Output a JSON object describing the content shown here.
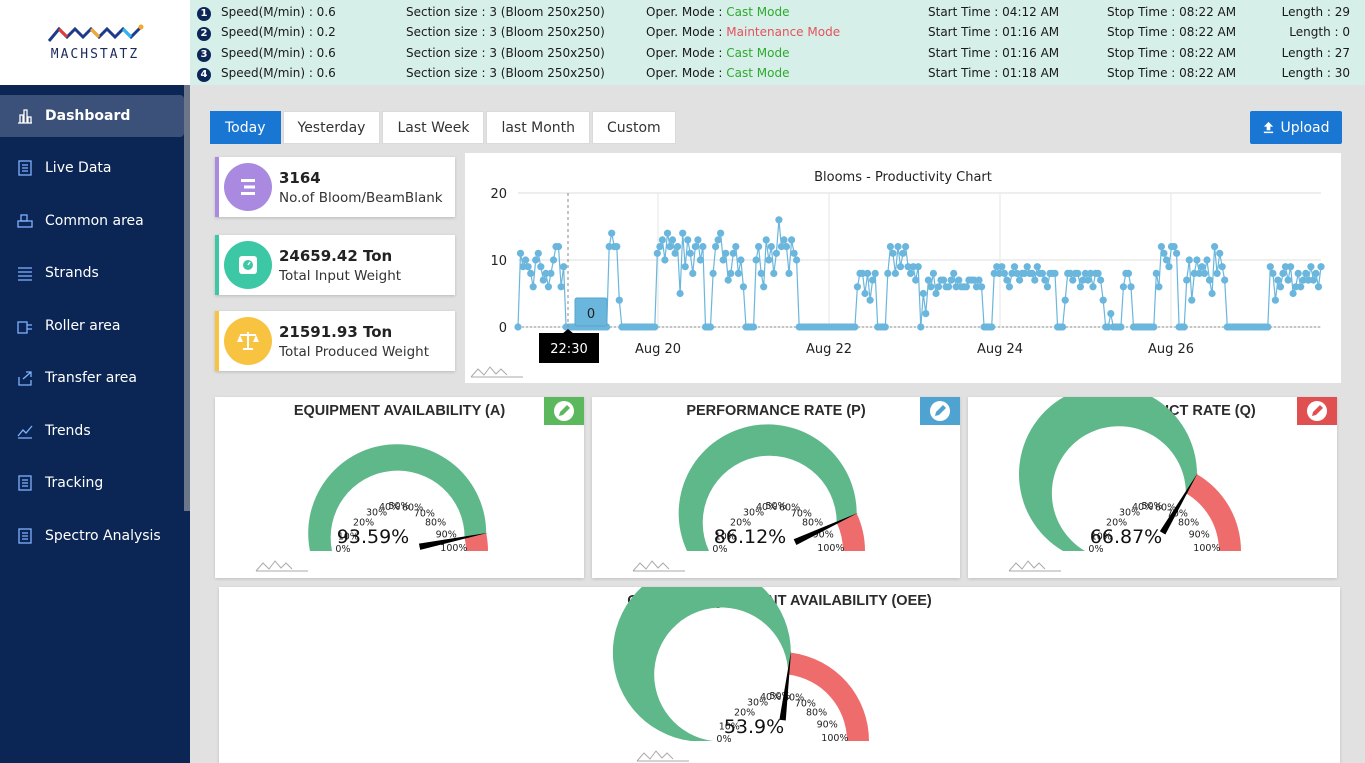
{
  "brand": {
    "name": "MACHSTATZ"
  },
  "status_rows": [
    {
      "num": "1",
      "speed": "Speed(M/min) : 0.6",
      "section": "Section size : 3 (Bloom 250x250)",
      "mode_label": "Oper. Mode : ",
      "mode_value": "Cast Mode",
      "mode_type": "cast",
      "start": "Start Time : 04:12 AM",
      "stop": "Stop Time : 08:22 AM",
      "length": "Length : 29"
    },
    {
      "num": "2",
      "speed": "Speed(M/min) : 0.2",
      "section": "Section size : 3 (Bloom 250x250)",
      "mode_label": "Oper. Mode : ",
      "mode_value": "Maintenance Mode",
      "mode_type": "maint",
      "start": "Start Time : 01:16 AM",
      "stop": "Stop Time : 08:22 AM",
      "length": "Length : 0"
    },
    {
      "num": "3",
      "speed": "Speed(M/min) : 0.6",
      "section": "Section size : 3 (Bloom 250x250)",
      "mode_label": "Oper. Mode : ",
      "mode_value": "Cast Mode",
      "mode_type": "cast",
      "start": "Start Time : 01:16 AM",
      "stop": "Stop Time : 08:22 AM",
      "length": "Length : 27"
    },
    {
      "num": "4",
      "speed": "Speed(M/min) : 0.6",
      "section": "Section size : 3 (Bloom 250x250)",
      "mode_label": "Oper. Mode : ",
      "mode_value": "Cast Mode",
      "mode_type": "cast",
      "start": "Start Time : 01:18 AM",
      "stop": "Stop Time : 08:22 AM",
      "length": "Length : 30"
    }
  ],
  "colors": {
    "cast": "#2eaa2e",
    "maintenance": "#e8505b",
    "primary": "#1976d2",
    "sidebar": "#0b2654",
    "gauge_green": "#5fb88a",
    "gauge_red": "#ef6c6c"
  },
  "sidebar": {
    "items": [
      {
        "label": "Dashboard",
        "icon": "bar-chart-icon",
        "active": true
      },
      {
        "label": "Live Data",
        "icon": "document-icon"
      },
      {
        "label": "Common area",
        "icon": "machine-icon"
      },
      {
        "label": "Strands",
        "icon": "lines-icon"
      },
      {
        "label": "Roller area",
        "icon": "roller-icon"
      },
      {
        "label": "Transfer area",
        "icon": "transfer-icon"
      },
      {
        "label": "Trends",
        "icon": "trend-icon"
      },
      {
        "label": "Tracking",
        "icon": "document-icon"
      },
      {
        "label": "Spectro Analysis",
        "icon": "document-icon"
      }
    ]
  },
  "tabs": [
    "Today",
    "Yesterday",
    "Last Week",
    "last Month",
    "Custom"
  ],
  "upload_label": "Upload",
  "kpis": [
    {
      "value": "3164",
      "label": "No.of Bloom/BeamBlank",
      "color": "#a98ae0",
      "bar": "#a98ae0",
      "icon": "bars-icon"
    },
    {
      "value": "24659.42 Ton",
      "label": "Total Input Weight",
      "color": "#3cc7a5",
      "bar": "#3cc7a5",
      "icon": "scale-icon"
    },
    {
      "value": "21591.93 Ton",
      "label": "Total Produced Weight",
      "color": "#f7c340",
      "bar": "#f7c340",
      "icon": "balance-icon"
    }
  ],
  "chart_data": {
    "type": "line",
    "title": "Blooms - Productivity Chart",
    "ylim": [
      0,
      20
    ],
    "yticks": [
      "0",
      "10",
      "20"
    ],
    "xticks": [
      "Aug 20",
      "Aug 22",
      "Aug 24",
      "Aug 26"
    ],
    "tooltip": {
      "value": "0",
      "time": "22:30"
    },
    "grid": true,
    "color": "#6bb6dd",
    "series": [
      {
        "values": [
          0,
          11,
          9,
          10,
          9,
          8,
          6,
          10,
          11,
          9,
          7,
          8,
          6,
          8,
          10,
          12,
          12,
          6,
          9,
          0,
          0,
          0,
          0,
          0,
          0,
          0,
          0,
          0,
          0,
          0,
          0,
          0,
          0,
          0,
          0,
          0,
          12,
          14,
          12,
          12,
          4,
          0,
          0,
          0,
          0,
          0,
          0,
          0,
          0,
          0,
          0,
          0,
          0,
          0,
          0,
          11,
          12,
          13,
          10,
          14,
          12,
          13,
          11,
          12,
          5,
          14,
          9,
          13,
          11,
          8,
          12,
          13,
          10,
          12,
          0,
          0,
          0,
          8,
          12,
          13,
          14,
          10,
          11,
          7,
          8,
          11,
          12,
          8,
          10,
          6,
          0,
          0,
          0,
          0,
          10,
          12,
          8,
          6,
          13,
          10,
          12,
          8,
          11,
          16,
          12,
          13,
          12,
          8,
          13,
          11,
          10,
          0,
          0,
          0,
          0,
          0,
          0,
          0,
          0,
          0,
          0,
          0,
          0,
          0,
          0,
          0,
          0,
          0,
          0,
          0,
          0,
          0,
          0,
          0,
          6,
          8,
          8,
          5,
          8,
          4,
          7,
          8,
          0,
          0,
          0,
          0,
          8,
          12,
          11,
          8,
          12,
          9,
          11,
          12,
          9,
          8,
          9,
          7,
          9,
          0,
          5,
          2,
          7,
          6,
          8,
          5,
          6,
          7,
          7,
          6,
          6,
          7,
          8,
          6,
          7,
          6,
          6,
          6,
          7,
          7,
          7,
          6,
          7,
          6,
          0,
          0,
          0,
          0,
          8,
          9,
          8,
          9,
          8,
          7,
          6,
          8,
          9,
          8,
          7,
          8,
          8,
          9,
          8,
          8,
          7,
          9,
          8,
          8,
          7,
          6,
          8,
          8,
          8,
          0,
          0,
          0,
          4,
          8,
          8,
          7,
          8,
          8,
          6,
          7,
          8,
          7,
          8,
          6,
          8,
          8,
          7,
          4,
          0,
          0,
          2,
          0,
          0,
          0,
          0,
          6,
          8,
          8,
          6,
          0,
          0,
          0,
          0,
          0,
          0,
          0,
          0,
          0,
          8,
          6,
          12,
          11,
          10,
          9,
          12,
          12,
          11,
          0,
          0,
          0,
          7,
          10,
          4,
          8,
          10,
          8,
          9,
          8,
          10,
          7,
          5,
          12,
          8,
          11,
          9,
          7,
          0,
          0,
          0,
          0,
          0,
          0,
          0,
          0,
          0,
          0,
          0,
          0,
          0,
          0,
          0,
          0,
          0,
          9,
          8,
          4,
          7,
          6,
          8,
          9,
          7,
          9,
          5,
          6,
          8,
          6,
          7,
          8,
          7,
          9,
          7,
          8,
          6,
          9
        ]
      }
    ]
  },
  "gauges": [
    {
      "title": "EQUIPMENT AVAILABILITY (A)",
      "value": 93.59,
      "display": "93.59%",
      "button_color": "#5cb85c"
    },
    {
      "title": "PERFORMANCE RATE (P)",
      "value": 86.12,
      "display": "86.12%",
      "button_color": "#4fa3d1"
    },
    {
      "title": "QUALITY PRODUCT RATE (Q)",
      "value": 66.87,
      "display": "66.87%",
      "button_color": "#e05050"
    },
    {
      "title": "OVERALL EQUIPMENT AVAILABILITY (OEE)",
      "value": 53.9,
      "display": "53.9%"
    }
  ],
  "gauge_ticks": [
    "0%",
    "10%",
    "20%",
    "30%",
    "40%",
    "50%",
    "60%",
    "70%",
    "80%",
    "90%",
    "100%"
  ]
}
